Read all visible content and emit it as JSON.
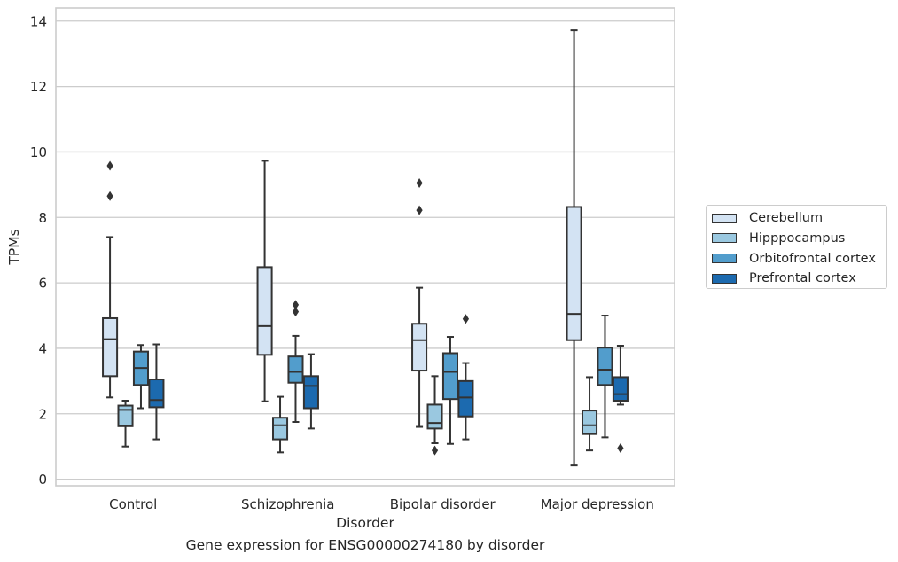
{
  "caption": "Gene expression for ENSG00000274180 by disorder",
  "chart_data": {
    "type": "box",
    "xlabel": "Disorder",
    "ylabel": "TPMs",
    "ylim": [
      -0.2,
      14.4
    ],
    "yticks": [
      0,
      2,
      4,
      6,
      8,
      10,
      12,
      14
    ],
    "grid": "horizontal",
    "legend_position": "right",
    "categories": [
      "Control",
      "Schizophrenia",
      "Bipolar disorder",
      "Major depression"
    ],
    "series": [
      {
        "name": "Cerebellum",
        "color": "#d3e3f3",
        "boxes": [
          {
            "whisker_low": 2.5,
            "q1": 3.15,
            "median": 4.28,
            "q3": 4.92,
            "whisker_high": 7.4,
            "outliers": [
              8.65,
              9.58
            ]
          },
          {
            "whisker_low": 2.38,
            "q1": 3.8,
            "median": 4.68,
            "q3": 6.48,
            "whisker_high": 9.73,
            "outliers": []
          },
          {
            "whisker_low": 1.6,
            "q1": 3.32,
            "median": 4.25,
            "q3": 4.75,
            "whisker_high": 5.85,
            "outliers": [
              8.22,
              9.05
            ]
          },
          {
            "whisker_low": 0.42,
            "q1": 4.25,
            "median": 5.05,
            "q3": 8.32,
            "whisker_high": 13.72,
            "outliers": []
          }
        ]
      },
      {
        "name": "Hipppocampus",
        "color": "#9ac8e0",
        "boxes": [
          {
            "whisker_low": 1.0,
            "q1": 1.62,
            "median": 2.12,
            "q3": 2.25,
            "whisker_high": 2.4,
            "outliers": []
          },
          {
            "whisker_low": 0.82,
            "q1": 1.22,
            "median": 1.65,
            "q3": 1.88,
            "whisker_high": 2.52,
            "outliers": []
          },
          {
            "whisker_low": 1.1,
            "q1": 1.55,
            "median": 1.72,
            "q3": 2.28,
            "whisker_high": 3.15,
            "outliers": [
              0.88
            ]
          },
          {
            "whisker_low": 0.88,
            "q1": 1.38,
            "median": 1.65,
            "q3": 2.1,
            "whisker_high": 3.12,
            "outliers": []
          }
        ]
      },
      {
        "name": "Orbitofrontal cortex",
        "color": "#529dcc",
        "boxes": [
          {
            "whisker_low": 2.17,
            "q1": 2.88,
            "median": 3.4,
            "q3": 3.9,
            "whisker_high": 4.1,
            "outliers": []
          },
          {
            "whisker_low": 1.75,
            "q1": 2.95,
            "median": 3.28,
            "q3": 3.75,
            "whisker_high": 4.38,
            "outliers": [
              5.12,
              5.33
            ]
          },
          {
            "whisker_low": 1.08,
            "q1": 2.45,
            "median": 3.28,
            "q3": 3.85,
            "whisker_high": 4.35,
            "outliers": []
          },
          {
            "whisker_low": 1.28,
            "q1": 2.88,
            "median": 3.35,
            "q3": 4.02,
            "whisker_high": 5.0,
            "outliers": []
          }
        ]
      },
      {
        "name": "Prefrontal cortex",
        "color": "#1c6aaf",
        "boxes": [
          {
            "whisker_low": 1.22,
            "q1": 2.2,
            "median": 2.42,
            "q3": 3.05,
            "whisker_high": 4.12,
            "outliers": []
          },
          {
            "whisker_low": 1.55,
            "q1": 2.17,
            "median": 2.85,
            "q3": 3.15,
            "whisker_high": 3.82,
            "outliers": []
          },
          {
            "whisker_low": 1.22,
            "q1": 1.92,
            "median": 2.5,
            "q3": 3.0,
            "whisker_high": 3.55,
            "outliers": [
              4.9
            ]
          },
          {
            "whisker_low": 2.28,
            "q1": 2.4,
            "median": 2.6,
            "q3": 3.12,
            "whisker_high": 4.08,
            "outliers": [
              0.95
            ]
          }
        ]
      }
    ]
  }
}
